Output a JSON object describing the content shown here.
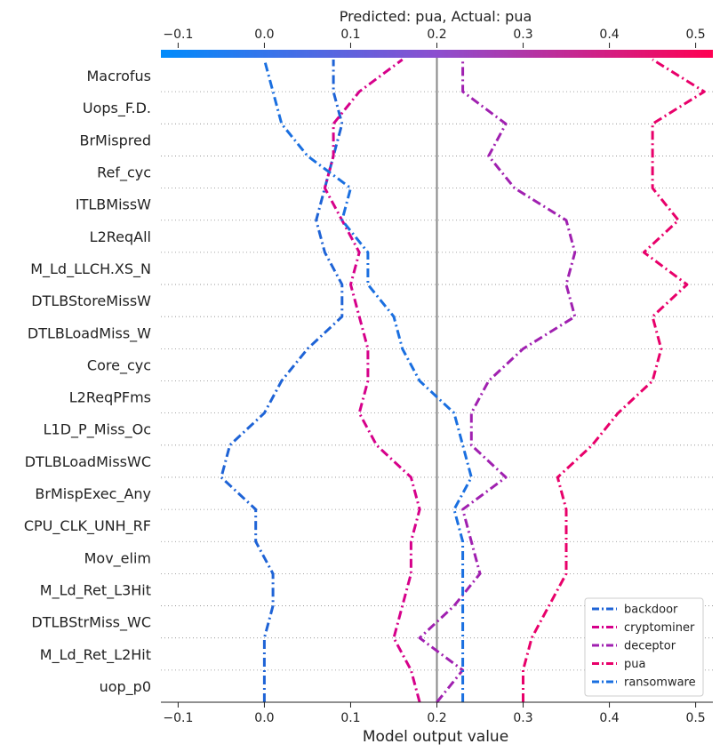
{
  "chart_data": {
    "type": "line",
    "title": "Predicted: pua, Actual: pua",
    "xlabel": "Model output value",
    "ylabel": "",
    "xlim": [
      -0.12,
      0.52
    ],
    "xticks": [
      -0.1,
      0.0,
      0.1,
      0.2,
      0.3,
      0.4,
      0.5
    ],
    "xtick_labels": [
      "−0.1",
      "0.0",
      "0.1",
      "0.2",
      "0.3",
      "0.4",
      "0.5"
    ],
    "base_value": 0.2,
    "features": [
      "Macrofus",
      "Uops_F.D.",
      "BrMispred",
      "Ref_cyc",
      "ITLBMissW",
      "L2ReqAll",
      "M_Ld_LLCH.XS_N",
      "DTLBStoreMissW",
      "DTLBLoadMiss_W",
      "Core_cyc",
      "L2ReqPFms",
      "L1D_P_Miss_Oc",
      "DTLBLoadMissWC",
      "BrMispExec_Any",
      "CPU_CLK_UNH_RF",
      "Mov_elim",
      "M_Ld_Ret_L3Hit",
      "DTLBStrMiss_WC",
      "M_Ld_Ret_L2Hit",
      "uop_p0"
    ],
    "colorbar": {
      "from": "#008bfb",
      "mid": "#8c4fcf",
      "to": "#ff0052"
    },
    "legend_position": "lower-right",
    "series": [
      {
        "name": "backdoor",
        "color": "#1e63d6",
        "values": [
          0.0,
          0.0,
          0.0,
          0.01,
          0.01,
          -0.01,
          -0.01,
          -0.05,
          -0.04,
          0.0,
          0.02,
          0.05,
          0.09,
          0.09,
          0.07,
          0.06,
          0.07,
          0.08,
          0.09,
          0.08,
          0.08
        ]
      },
      {
        "name": "cryptominer",
        "color": "#d6008a",
        "values": [
          0.18,
          0.17,
          0.15,
          0.16,
          0.17,
          0.17,
          0.18,
          0.17,
          0.13,
          0.11,
          0.12,
          0.12,
          0.11,
          0.1,
          0.11,
          0.09,
          0.07,
          0.08,
          0.08,
          0.11,
          0.16
        ]
      },
      {
        "name": "deceptor",
        "color": "#a020b0",
        "values": [
          0.2,
          0.23,
          0.18,
          0.22,
          0.25,
          0.24,
          0.23,
          0.28,
          0.24,
          0.24,
          0.26,
          0.3,
          0.36,
          0.35,
          0.36,
          0.35,
          0.29,
          0.26,
          0.28,
          0.23,
          0.23
        ]
      },
      {
        "name": "pua",
        "color": "#e8006a",
        "values": [
          0.3,
          0.3,
          0.31,
          0.33,
          0.35,
          0.35,
          0.35,
          0.34,
          0.38,
          0.41,
          0.45,
          0.46,
          0.45,
          0.49,
          0.44,
          0.48,
          0.45,
          0.45,
          0.45,
          0.51,
          0.45
        ]
      },
      {
        "name": "ransomware",
        "color": "#1a6fe0",
        "values": [
          0.23,
          0.23,
          0.23,
          0.23,
          0.23,
          0.23,
          0.22,
          0.24,
          0.23,
          0.22,
          0.18,
          0.16,
          0.15,
          0.12,
          0.12,
          0.09,
          0.1,
          0.05,
          0.02,
          0.01,
          0.0
        ]
      }
    ]
  }
}
